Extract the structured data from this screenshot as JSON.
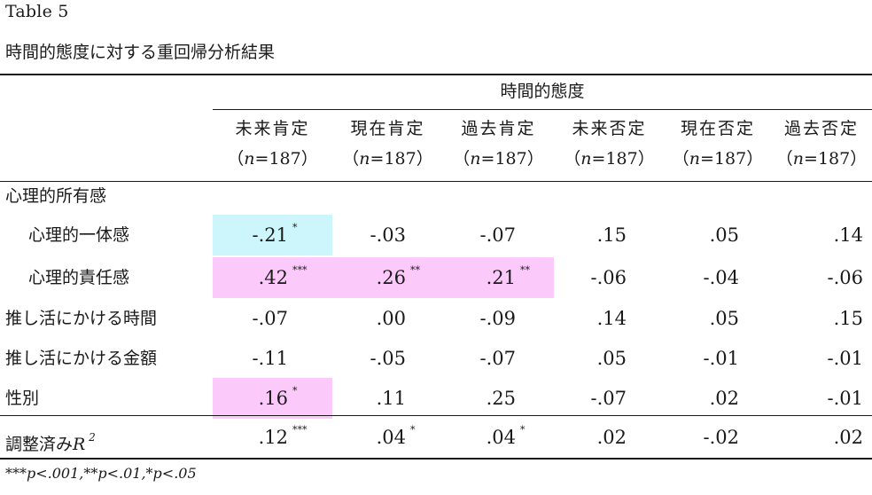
{
  "table_number": "Table 5",
  "title": "時間的態度に対する重回帰分析結果",
  "group_header": "時間的態度",
  "columns": [
    {
      "name": "未来肯定",
      "n": "187"
    },
    {
      "name": "現在肯定",
      "n": "187"
    },
    {
      "name": "過去肯定",
      "n": "187"
    },
    {
      "name": "未来否定",
      "n": "187"
    },
    {
      "name": "現在否定",
      "n": "187"
    },
    {
      "name": "過去否定",
      "n": "187"
    }
  ],
  "n_symbol": "n",
  "section_label": "心理的所有感",
  "rows": [
    {
      "label": "心理的一体感",
      "values": [
        "-.21",
        "-.03",
        "-.07",
        ".15",
        ".05",
        ".14"
      ],
      "stars": [
        "*",
        "",
        "",
        "",
        "",
        ""
      ],
      "highlight": [
        "cyan",
        "",
        "",
        "",
        "",
        ""
      ]
    },
    {
      "label": "心理的責任感",
      "values": [
        ".42",
        ".26",
        ".21",
        "-.06",
        "-.04",
        "-.06"
      ],
      "stars": [
        "***",
        "**",
        "**",
        "",
        "",
        ""
      ],
      "highlight": [
        "pink",
        "pink",
        "pink",
        "",
        "",
        ""
      ]
    },
    {
      "label": "推し活にかける時間",
      "values": [
        "-.07",
        ".00",
        "-.09",
        ".14",
        ".05",
        ".15"
      ],
      "stars": [
        "",
        "",
        "",
        "",
        "",
        ""
      ],
      "highlight": [
        "",
        "",
        "",
        "",
        "",
        ""
      ]
    },
    {
      "label": "推し活にかける金額",
      "values": [
        "-.11",
        "-.05",
        "-.07",
        ".05",
        "-.01",
        "-.01"
      ],
      "stars": [
        "",
        "",
        "",
        "",
        "",
        ""
      ],
      "highlight": [
        "",
        "",
        "",
        "",
        "",
        ""
      ]
    },
    {
      "label": "性別",
      "values": [
        ".16",
        ".11",
        ".25",
        "-.07",
        ".02",
        "-.01"
      ],
      "stars": [
        "*",
        "",
        "",
        "",
        "",
        ""
      ],
      "highlight": [
        "pink",
        "",
        "",
        "",
        "",
        ""
      ]
    }
  ],
  "r2_row": {
    "label": "調整済み",
    "symbol": "R",
    "exponent": "2",
    "values": [
      ".12",
      ".04",
      ".04",
      ".02",
      "-.02",
      ".02"
    ],
    "stars": [
      "***",
      "*",
      "*",
      "",
      "",
      ""
    ]
  },
  "footnote": "***p<.001,**p<.01,*p<.05",
  "colors": {
    "cyan_highlight": "#ccf6fb",
    "pink_highlight": "#fcc9fb"
  }
}
